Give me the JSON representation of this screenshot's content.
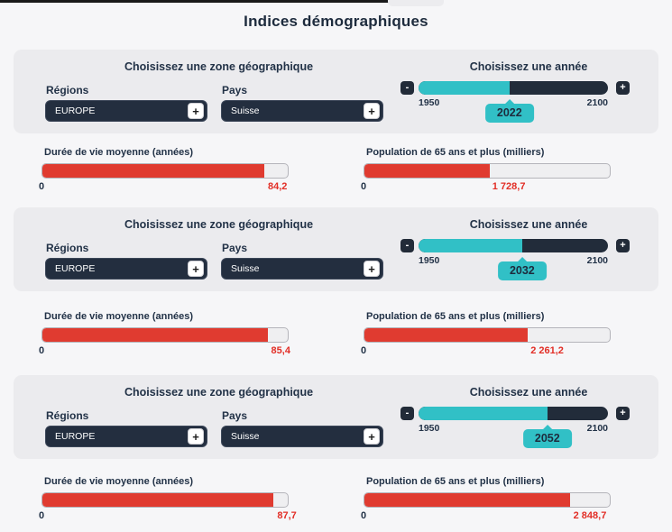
{
  "page": {
    "title": "Indices démographiques"
  },
  "colors": {
    "teal": "#31c0c6",
    "navy": "#232e3f",
    "red_fill": "#e03b30",
    "red_text": "#e22e26",
    "panel_bg": "#ebebee"
  },
  "sections": [
    {
      "zone_title": "Choisissez une zone géographique",
      "year_title": "Choisissez une année",
      "regions_label": "Régions",
      "regions_value": "EUROPE",
      "regions_expand": "+",
      "pays_label": "Pays",
      "pays_value": "Suisse",
      "pays_expand": "+",
      "slider": {
        "minus": "-",
        "plus": "+",
        "min_label": "1950",
        "max_label": "2100",
        "year": "2022",
        "fill_pct": 48
      },
      "bars": [
        {
          "label": "Durée de vie moyenne (années)",
          "zero": "0",
          "value": "84,2",
          "fill_pct": 90.5
        },
        {
          "label": "Population de 65 ans et plus (milliers)",
          "zero": "0",
          "value": "1 728,7",
          "fill_pct": 51
        }
      ]
    },
    {
      "zone_title": "Choisissez une zone géographique",
      "year_title": "Choisissez une année",
      "regions_label": "Régions",
      "regions_value": "EUROPE",
      "regions_expand": "+",
      "pays_label": "Pays",
      "pays_value": "Suisse",
      "pays_expand": "+",
      "slider": {
        "minus": "-",
        "plus": "+",
        "min_label": "1950",
        "max_label": "2100",
        "year": "2032",
        "fill_pct": 54.7
      },
      "bars": [
        {
          "label": "Durée de vie moyenne (années)",
          "zero": "0",
          "value": "85,4",
          "fill_pct": 91.8
        },
        {
          "label": "Population de 65 ans et plus (milliers)",
          "zero": "0",
          "value": "2 261,2",
          "fill_pct": 66.5
        }
      ]
    },
    {
      "zone_title": "Choisissez une zone géographique",
      "year_title": "Choisissez une année",
      "regions_label": "Régions",
      "regions_value": "EUROPE",
      "regions_expand": "+",
      "pays_label": "Pays",
      "pays_value": "Suisse",
      "pays_expand": "+",
      "slider": {
        "minus": "-",
        "plus": "+",
        "min_label": "1950",
        "max_label": "2100",
        "year": "2052",
        "fill_pct": 68
      },
      "bars": [
        {
          "label": "Durée de vie moyenne (années)",
          "zero": "0",
          "value": "87,7",
          "fill_pct": 94.3
        },
        {
          "label": "Population de 65 ans et plus (milliers)",
          "zero": "0",
          "value": "2 848,7",
          "fill_pct": 83.8
        }
      ]
    }
  ],
  "chart_data": {
    "type": "bar",
    "title": "Indices démographiques",
    "region": "EUROPE",
    "country": "Suisse",
    "categories": [
      2022,
      2032,
      2052
    ],
    "series": [
      {
        "name": "Durée de vie moyenne (années)",
        "values": [
          84.2,
          85.4,
          87.7
        ]
      },
      {
        "name": "Population de 65 ans et plus (milliers)",
        "values": [
          1728.7,
          2261.2,
          2848.7
        ]
      }
    ],
    "slider_range": [
      1950,
      2100
    ],
    "gauge_min": 0
  }
}
